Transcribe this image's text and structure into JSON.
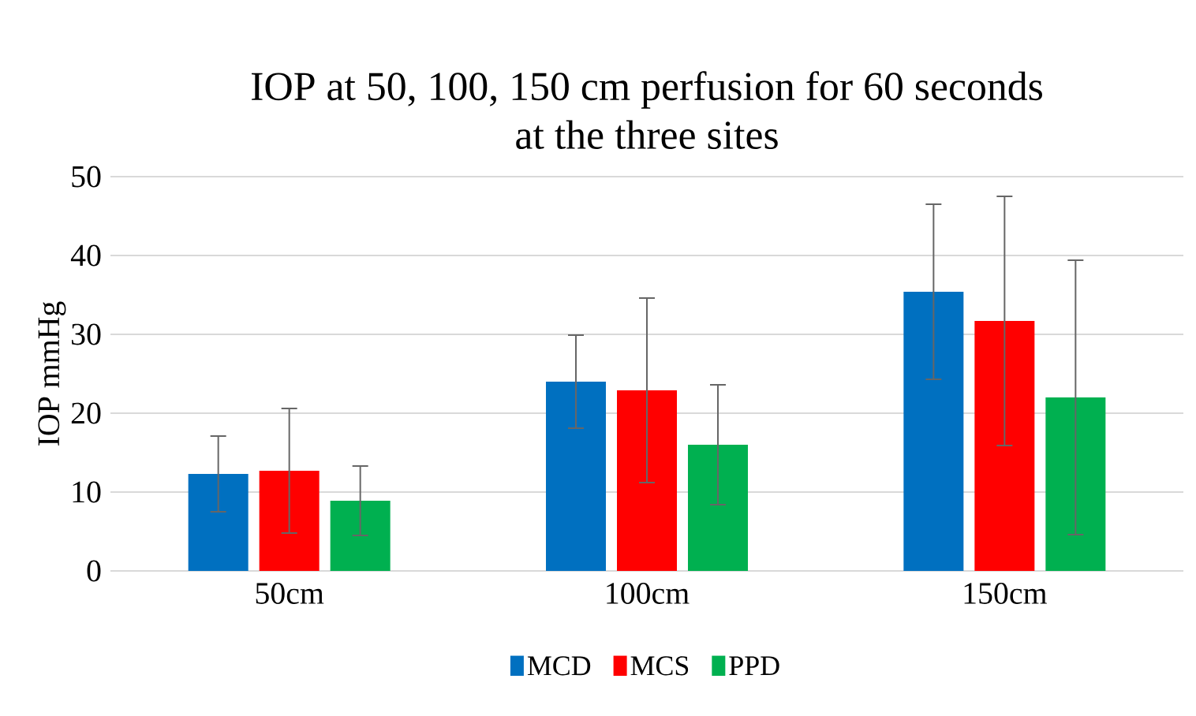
{
  "chart_data": {
    "type": "bar",
    "title": "IOP at 50, 100, 150 cm perfusion for 60 seconds\nat the three sites",
    "ylabel": "IOP mmHg",
    "categories": [
      "50cm",
      "100cm",
      "150cm"
    ],
    "series": [
      {
        "name": "MCD",
        "color": "#0070c0",
        "values": [
          12.3,
          24.0,
          35.4
        ],
        "errors": [
          4.8,
          5.9,
          11.1
        ]
      },
      {
        "name": "MCS",
        "color": "#ff0000",
        "values": [
          12.7,
          22.9,
          31.7
        ],
        "errors": [
          7.9,
          11.7,
          15.8
        ]
      },
      {
        "name": "PPD",
        "color": "#00b050",
        "values": [
          8.9,
          16.0,
          22.0
        ],
        "errors": [
          4.4,
          7.6,
          17.4
        ]
      }
    ],
    "ylim": [
      0,
      50
    ],
    "yticks": [
      0,
      10,
      20,
      30,
      40,
      50
    ],
    "grid": "y",
    "legend": "bottom"
  }
}
